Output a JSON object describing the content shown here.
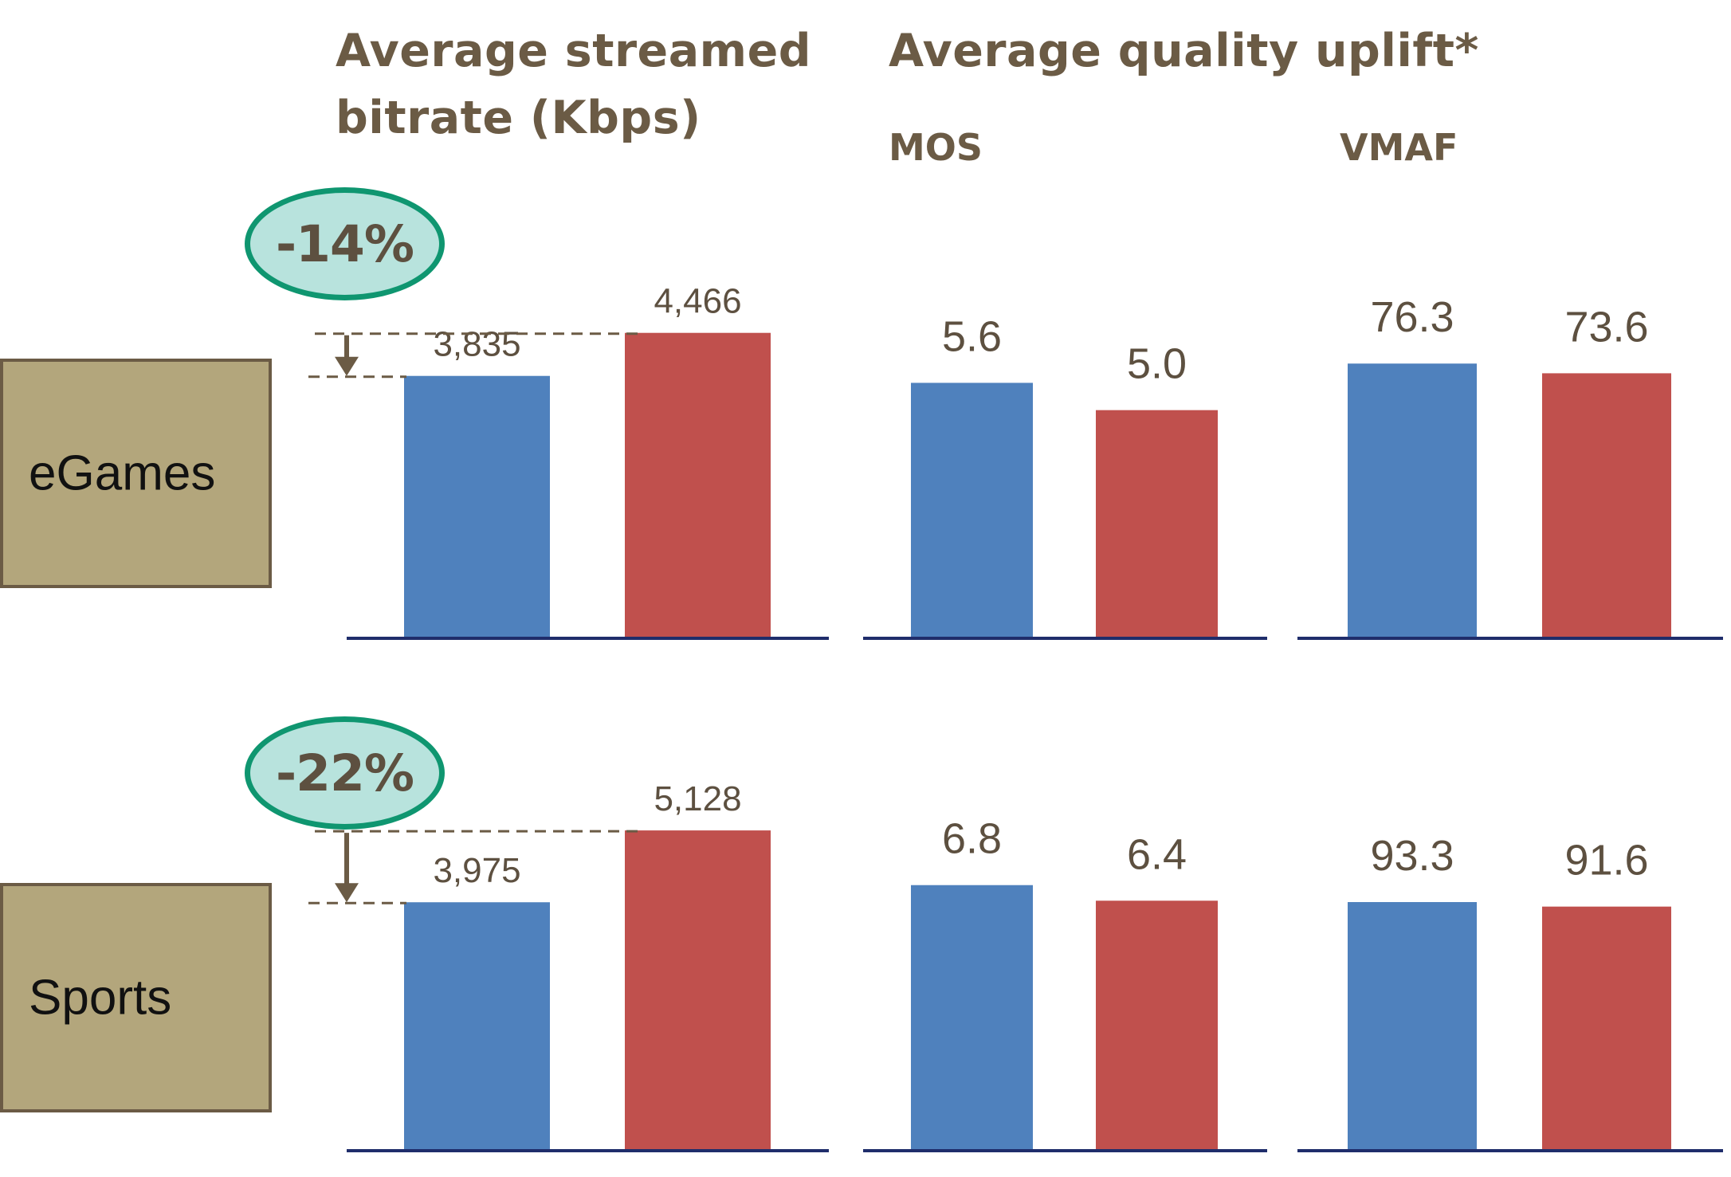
{
  "headers": {
    "bitrate_line1": "Average streamed",
    "bitrate_line2": "bitrate (Kbps)",
    "quality": "Average quality uplift*",
    "mos": "MOS",
    "vmaf": "VMAF"
  },
  "colors": {
    "series_a": "#4f81bd",
    "series_b": "#c0504d",
    "axis": "#1f2d6b",
    "text": "#5d5040",
    "box_fill": "#b3a67c",
    "badge_fill": "#b8e3dd",
    "badge_border": "#0f9670"
  },
  "icons": {
    "reduction_arrow": "arrow-down-icon"
  },
  "chart_data": [
    {
      "type": "bar",
      "row": "eGames",
      "metric": "Average streamed bitrate (Kbps)",
      "values": [
        3835,
        4466
      ],
      "labels": [
        "3,835",
        "4,466"
      ],
      "ylim": [
        0,
        5000
      ],
      "reduction": "-14%"
    },
    {
      "type": "bar",
      "row": "eGames",
      "metric": "MOS",
      "values": [
        5.6,
        5.0
      ],
      "labels": [
        "5.6",
        "5.0"
      ],
      "ylim": [
        0,
        7.5
      ]
    },
    {
      "type": "bar",
      "row": "eGames",
      "metric": "VMAF",
      "values": [
        76.3,
        73.6
      ],
      "labels": [
        "76.3",
        "73.6"
      ],
      "ylim": [
        0,
        95
      ]
    },
    {
      "type": "bar",
      "row": "Sports",
      "metric": "Average streamed bitrate (Kbps)",
      "values": [
        3975,
        5128
      ],
      "labels": [
        "3,975",
        "5,128"
      ],
      "ylim": [
        0,
        5500
      ],
      "reduction": "-22%"
    },
    {
      "type": "bar",
      "row": "Sports",
      "metric": "MOS",
      "values": [
        6.8,
        6.4
      ],
      "labels": [
        "6.8",
        "6.4"
      ],
      "ylim": [
        0,
        8.8
      ]
    },
    {
      "type": "bar",
      "row": "Sports",
      "metric": "VMAF",
      "values": [
        93.3,
        91.6
      ],
      "labels": [
        "93.3",
        "91.6"
      ],
      "ylim": [
        0,
        129
      ]
    }
  ]
}
